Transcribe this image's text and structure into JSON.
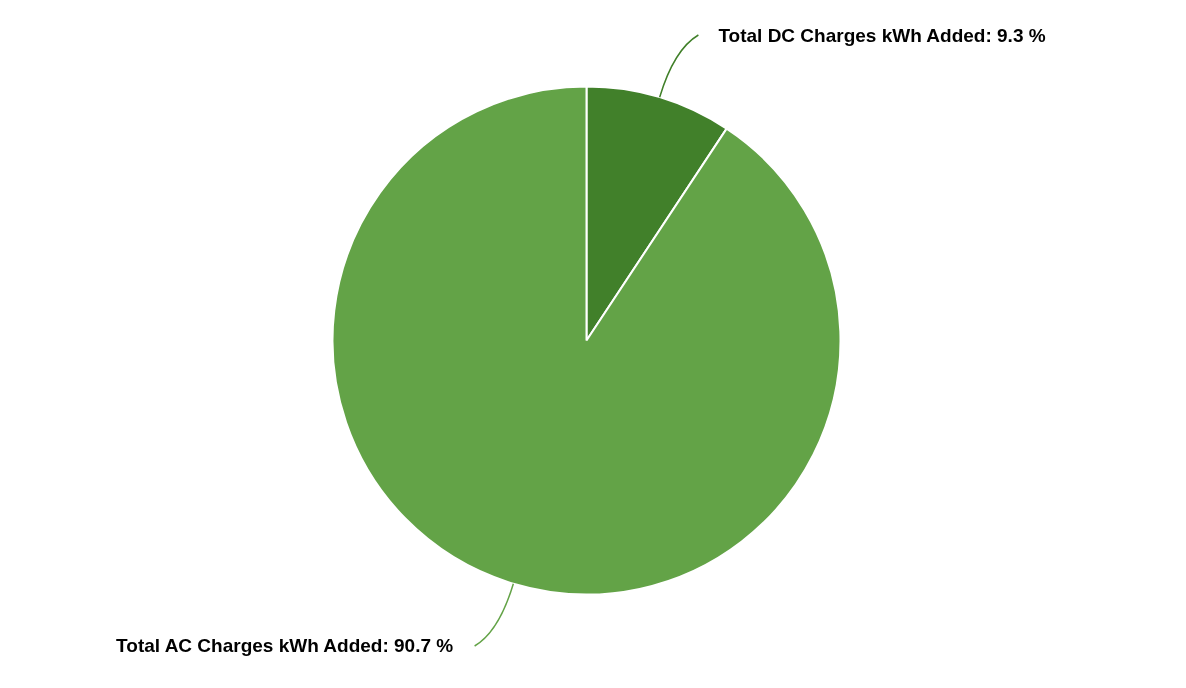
{
  "chart_data": {
    "type": "pie",
    "categories": [
      "Total DC Charges kWh Added",
      "Total AC Charges kWh Added"
    ],
    "values": [
      9.3,
      90.7
    ],
    "colors": [
      "#41802a",
      "#63a347"
    ],
    "value_labels": [
      "9.3 %",
      "90.7 %"
    ]
  }
}
